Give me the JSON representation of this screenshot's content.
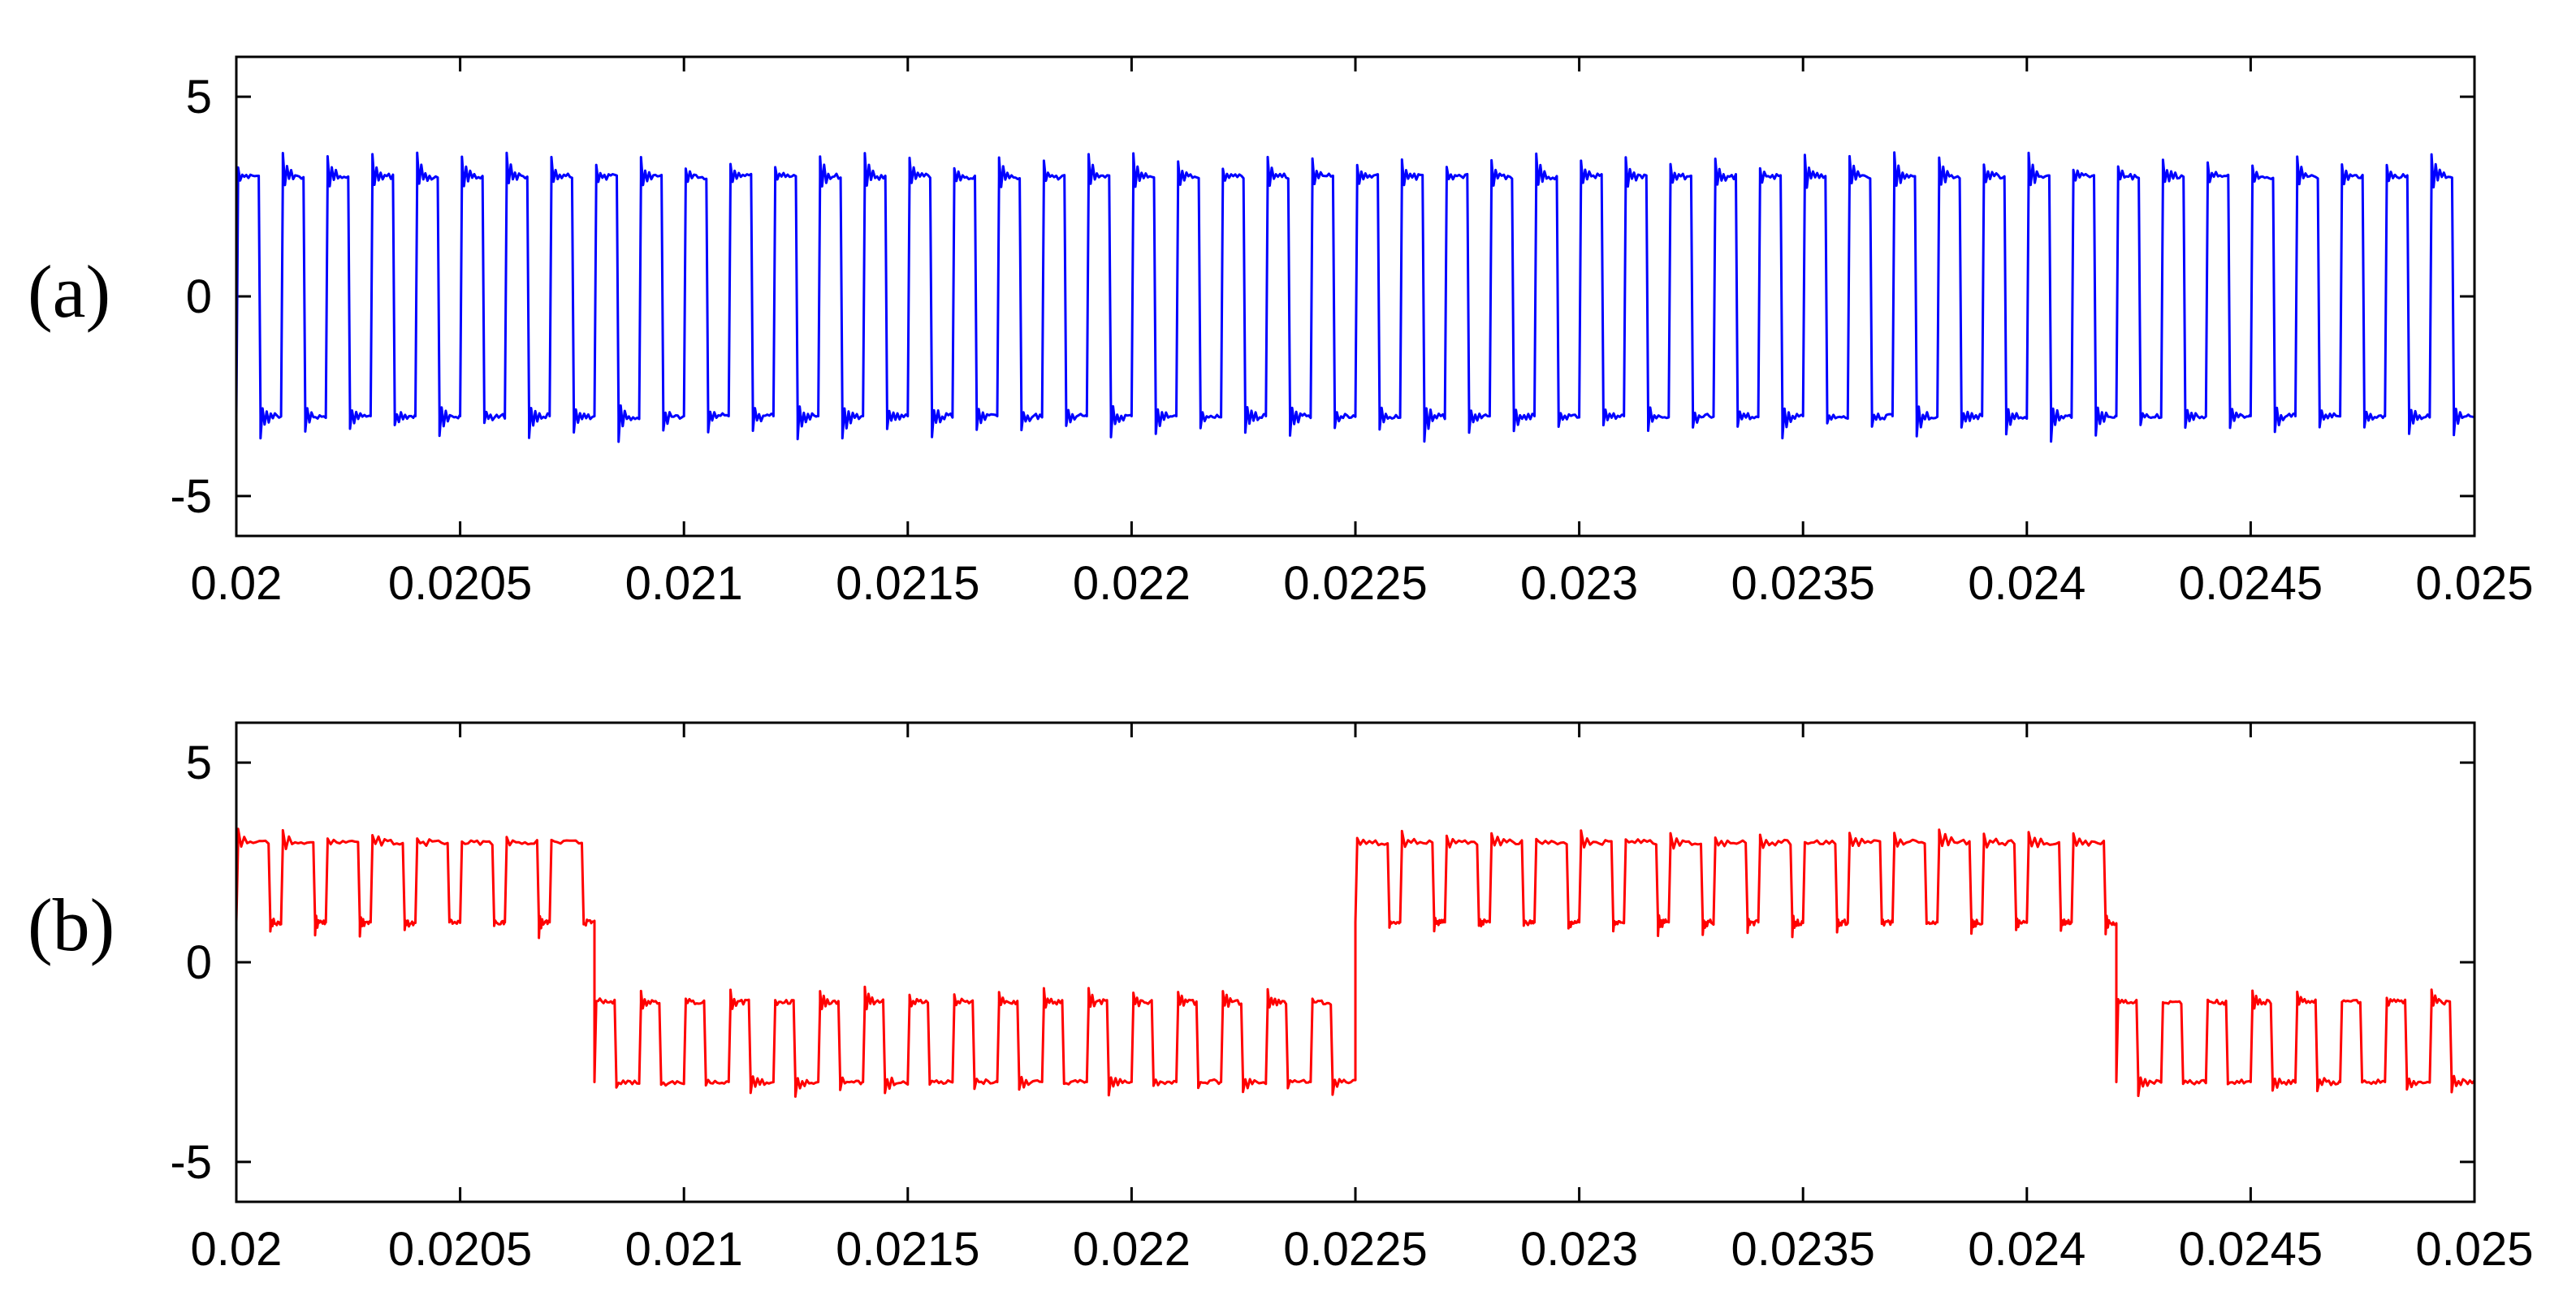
{
  "chart_data": [
    {
      "type": "line",
      "panel_label": "(a)",
      "xlim": [
        0.02,
        0.025
      ],
      "ylim": [
        -6,
        6
      ],
      "grid": false,
      "xticks": [
        0.02,
        0.0205,
        0.021,
        0.0215,
        0.022,
        0.0225,
        0.023,
        0.0235,
        0.024,
        0.0245,
        0.025
      ],
      "xtick_labels": [
        "0.02",
        "0.0205",
        "0.021",
        "0.0215",
        "0.022",
        "0.0225",
        "0.023",
        "0.0235",
        "0.024",
        "0.0245",
        "0.025"
      ],
      "yticks": [
        -5,
        0,
        5
      ],
      "ytick_labels": [
        "-5",
        "0",
        "5"
      ],
      "series": [
        {
          "color": "#0000ff",
          "waveform": "bipolar PWM square wave",
          "high_level": 3,
          "low_level": -3,
          "switching_period": 0.0001,
          "overshoot_peaks": 3.6,
          "undershoot_peaks": -3.6
        }
      ]
    },
    {
      "type": "line",
      "panel_label": "(b)",
      "xlim": [
        0.02,
        0.025
      ],
      "ylim": [
        -6,
        6
      ],
      "grid": false,
      "xticks": [
        0.02,
        0.0205,
        0.021,
        0.0215,
        0.022,
        0.0225,
        0.023,
        0.0235,
        0.024,
        0.0245,
        0.025
      ],
      "xtick_labels": [
        "0.02",
        "0.0205",
        "0.021",
        "0.0215",
        "0.022",
        "0.0225",
        "0.023",
        "0.0235",
        "0.024",
        "0.0245",
        "0.025"
      ],
      "yticks": [
        -5,
        0,
        5
      ],
      "ytick_labels": [
        "-5",
        "0",
        "5"
      ],
      "series": [
        {
          "color": "#ff0000",
          "waveform": "multilevel PWM square wave",
          "positive_half": {
            "high_level": 3,
            "low_level": 1
          },
          "negative_half": {
            "high_level": -1,
            "low_level": -3
          },
          "switching_period": 0.0001,
          "fundamental_transitions": [
            {
              "x": 0.02081,
              "to": "negative"
            },
            {
              "x": 0.02251,
              "to": "positive"
            },
            {
              "x": 0.02421,
              "to": "negative"
            }
          ],
          "x_start_state": "positive"
        }
      ]
    }
  ]
}
